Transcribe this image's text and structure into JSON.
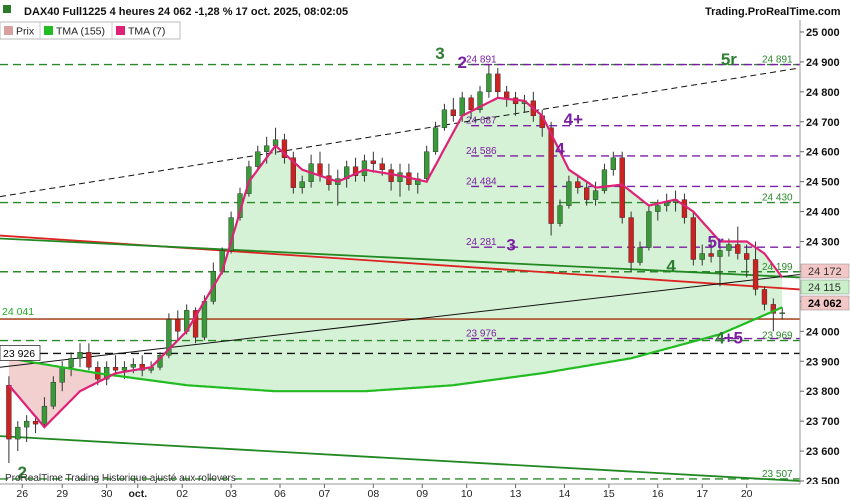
{
  "header": {
    "title": "DAX40 Full1225 4 heures 24 062 -1,28 % 17 oct. 2025, 08:02:05",
    "site": "Trading.ProRealTime.com"
  },
  "legend": [
    {
      "label": "Prix",
      "color": "#d9a0a0"
    },
    {
      "label": "TMA (155)",
      "color": "#22bb22"
    },
    {
      "label": "TMA (7)",
      "color": "#dd2277"
    }
  ],
  "footer": "ProRealTime Trading  Historique ajusté aux rollovers",
  "colors": {
    "up": "#3a9a3a",
    "down": "#cc2222",
    "wick": "#333333",
    "tma155": "#22bb22",
    "tma7": "#dd2277",
    "fill_green": "#d6f2d6",
    "fill_red": "#f2d0d0",
    "dash_green": "#2a8a2a",
    "dash_purple": "#7b1fa2",
    "trend_red": "#dd2222",
    "trend_green": "#228822",
    "trend_black": "#111111"
  },
  "chart_data": {
    "type": "candlestick",
    "x_tick_labels": [
      "26",
      "29",
      "30",
      "oct.",
      "02",
      "03",
      "06",
      "07",
      "08",
      "09",
      "10",
      "13",
      "14",
      "15",
      "16",
      "17",
      "20"
    ],
    "y_ticks": [
      23500,
      23600,
      23700,
      23800,
      23900,
      24000,
      24100,
      24200,
      24300,
      24400,
      24500,
      24600,
      24700,
      24800,
      24900,
      25000
    ],
    "y_tick_labels": [
      "23 500",
      "23 600",
      "23 700",
      "23 800",
      "23 900",
      "24 000",
      "24 100",
      "24 200",
      "24 300",
      "24 400",
      "24 500",
      "24 600",
      "24 700",
      "24 800",
      "24 900",
      "25 000"
    ],
    "ylim": [
      23490,
      25040
    ],
    "grid": false,
    "candles": [
      {
        "o": 23820,
        "h": 23850,
        "l": 23560,
        "c": 23640
      },
      {
        "o": 23640,
        "h": 23700,
        "l": 23600,
        "c": 23680
      },
      {
        "o": 23680,
        "h": 23720,
        "l": 23630,
        "c": 23700
      },
      {
        "o": 23700,
        "h": 23710,
        "l": 23660,
        "c": 23690
      },
      {
        "o": 23690,
        "h": 23780,
        "l": 23680,
        "c": 23750
      },
      {
        "o": 23750,
        "h": 23850,
        "l": 23740,
        "c": 23830
      },
      {
        "o": 23830,
        "h": 23900,
        "l": 23800,
        "c": 23880
      },
      {
        "o": 23880,
        "h": 23930,
        "l": 23850,
        "c": 23910
      },
      {
        "o": 23910,
        "h": 23960,
        "l": 23880,
        "c": 23930
      },
      {
        "o": 23930,
        "h": 23960,
        "l": 23870,
        "c": 23880
      },
      {
        "o": 23880,
        "h": 23900,
        "l": 23820,
        "c": 23840
      },
      {
        "o": 23840,
        "h": 23900,
        "l": 23820,
        "c": 23880
      },
      {
        "o": 23880,
        "h": 23920,
        "l": 23850,
        "c": 23870
      },
      {
        "o": 23870,
        "h": 23900,
        "l": 23840,
        "c": 23880
      },
      {
        "o": 23880,
        "h": 23910,
        "l": 23860,
        "c": 23890
      },
      {
        "o": 23890,
        "h": 23920,
        "l": 23850,
        "c": 23870
      },
      {
        "o": 23870,
        "h": 23900,
        "l": 23860,
        "c": 23880
      },
      {
        "o": 23880,
        "h": 23930,
        "l": 23870,
        "c": 23920
      },
      {
        "o": 23920,
        "h": 24060,
        "l": 23910,
        "c": 24040
      },
      {
        "o": 24040,
        "h": 24070,
        "l": 23970,
        "c": 24000
      },
      {
        "o": 24000,
        "h": 24090,
        "l": 23990,
        "c": 24070
      },
      {
        "o": 24070,
        "h": 24080,
        "l": 23960,
        "c": 23980
      },
      {
        "o": 23980,
        "h": 24120,
        "l": 23970,
        "c": 24100
      },
      {
        "o": 24100,
        "h": 24230,
        "l": 24090,
        "c": 24200
      },
      {
        "o": 24200,
        "h": 24280,
        "l": 24190,
        "c": 24270
      },
      {
        "o": 24270,
        "h": 24400,
        "l": 24260,
        "c": 24380
      },
      {
        "o": 24380,
        "h": 24480,
        "l": 24370,
        "c": 24460
      },
      {
        "o": 24460,
        "h": 24570,
        "l": 24450,
        "c": 24550
      },
      {
        "o": 24550,
        "h": 24620,
        "l": 24540,
        "c": 24600
      },
      {
        "o": 24600,
        "h": 24650,
        "l": 24560,
        "c": 24620
      },
      {
        "o": 24620,
        "h": 24680,
        "l": 24590,
        "c": 24640
      },
      {
        "o": 24640,
        "h": 24660,
        "l": 24560,
        "c": 24580
      },
      {
        "o": 24580,
        "h": 24600,
        "l": 24460,
        "c": 24480
      },
      {
        "o": 24480,
        "h": 24520,
        "l": 24460,
        "c": 24500
      },
      {
        "o": 24500,
        "h": 24590,
        "l": 24480,
        "c": 24560
      },
      {
        "o": 24560,
        "h": 24600,
        "l": 24500,
        "c": 24520
      },
      {
        "o": 24520,
        "h": 24560,
        "l": 24470,
        "c": 24490
      },
      {
        "o": 24490,
        "h": 24540,
        "l": 24420,
        "c": 24510
      },
      {
        "o": 24510,
        "h": 24570,
        "l": 24480,
        "c": 24550
      },
      {
        "o": 24550,
        "h": 24580,
        "l": 24500,
        "c": 24520
      },
      {
        "o": 24520,
        "h": 24590,
        "l": 24500,
        "c": 24570
      },
      {
        "o": 24570,
        "h": 24600,
        "l": 24530,
        "c": 24560
      },
      {
        "o": 24560,
        "h": 24580,
        "l": 24520,
        "c": 24540
      },
      {
        "o": 24540,
        "h": 24560,
        "l": 24470,
        "c": 24500
      },
      {
        "o": 24500,
        "h": 24560,
        "l": 24450,
        "c": 24530
      },
      {
        "o": 24530,
        "h": 24560,
        "l": 24470,
        "c": 24490
      },
      {
        "o": 24490,
        "h": 24530,
        "l": 24460,
        "c": 24510
      },
      {
        "o": 24510,
        "h": 24620,
        "l": 24500,
        "c": 24600
      },
      {
        "o": 24600,
        "h": 24700,
        "l": 24590,
        "c": 24680
      },
      {
        "o": 24680,
        "h": 24760,
        "l": 24670,
        "c": 24740
      },
      {
        "o": 24740,
        "h": 24780,
        "l": 24700,
        "c": 24720
      },
      {
        "o": 24720,
        "h": 24800,
        "l": 24700,
        "c": 24780
      },
      {
        "o": 24780,
        "h": 24790,
        "l": 24710,
        "c": 24740
      },
      {
        "o": 24740,
        "h": 24820,
        "l": 24730,
        "c": 24800
      },
      {
        "o": 24800,
        "h": 24890,
        "l": 24780,
        "c": 24860
      },
      {
        "o": 24860,
        "h": 24880,
        "l": 24780,
        "c": 24800
      },
      {
        "o": 24800,
        "h": 24820,
        "l": 24750,
        "c": 24780
      },
      {
        "o": 24780,
        "h": 24800,
        "l": 24720,
        "c": 24760
      },
      {
        "o": 24760,
        "h": 24790,
        "l": 24730,
        "c": 24770
      },
      {
        "o": 24770,
        "h": 24800,
        "l": 24700,
        "c": 24720
      },
      {
        "o": 24720,
        "h": 24740,
        "l": 24650,
        "c": 24680
      },
      {
        "o": 24680,
        "h": 24700,
        "l": 24320,
        "c": 24360
      },
      {
        "o": 24360,
        "h": 24440,
        "l": 24350,
        "c": 24420
      },
      {
        "o": 24420,
        "h": 24520,
        "l": 24410,
        "c": 24500
      },
      {
        "o": 24500,
        "h": 24520,
        "l": 24460,
        "c": 24480
      },
      {
        "o": 24480,
        "h": 24500,
        "l": 24420,
        "c": 24440
      },
      {
        "o": 24440,
        "h": 24500,
        "l": 24420,
        "c": 24470
      },
      {
        "o": 24470,
        "h": 24560,
        "l": 24460,
        "c": 24540
      },
      {
        "o": 24540,
        "h": 24600,
        "l": 24520,
        "c": 24580
      },
      {
        "o": 24580,
        "h": 24600,
        "l": 24360,
        "c": 24380
      },
      {
        "o": 24380,
        "h": 24400,
        "l": 24200,
        "c": 24230
      },
      {
        "o": 24230,
        "h": 24300,
        "l": 24220,
        "c": 24280
      },
      {
        "o": 24280,
        "h": 24420,
        "l": 24270,
        "c": 24400
      },
      {
        "o": 24400,
        "h": 24440,
        "l": 24370,
        "c": 24420
      },
      {
        "o": 24420,
        "h": 24460,
        "l": 24400,
        "c": 24430
      },
      {
        "o": 24430,
        "h": 24470,
        "l": 24400,
        "c": 24440
      },
      {
        "o": 24440,
        "h": 24460,
        "l": 24360,
        "c": 24380
      },
      {
        "o": 24380,
        "h": 24400,
        "l": 24220,
        "c": 24240
      },
      {
        "o": 24240,
        "h": 24290,
        "l": 24220,
        "c": 24260
      },
      {
        "o": 24260,
        "h": 24300,
        "l": 24230,
        "c": 24250
      },
      {
        "o": 24250,
        "h": 24280,
        "l": 24150,
        "c": 24270
      },
      {
        "o": 24270,
        "h": 24310,
        "l": 24250,
        "c": 24290
      },
      {
        "o": 24290,
        "h": 24350,
        "l": 24240,
        "c": 24260
      },
      {
        "o": 24260,
        "h": 24290,
        "l": 24180,
        "c": 24240
      },
      {
        "o": 24240,
        "h": 24300,
        "l": 24120,
        "c": 24140
      },
      {
        "o": 24140,
        "h": 24150,
        "l": 24070,
        "c": 24090
      },
      {
        "o": 24090,
        "h": 24110,
        "l": 24000,
        "c": 24060
      },
      {
        "o": 24060,
        "h": 24080,
        "l": 24040,
        "c": 24062
      }
    ],
    "tma155": [
      [
        0,
        23910
      ],
      [
        10,
        23860
      ],
      [
        20,
        23820
      ],
      [
        30,
        23800
      ],
      [
        40,
        23800
      ],
      [
        50,
        23820
      ],
      [
        60,
        23860
      ],
      [
        70,
        23910
      ],
      [
        80,
        23990
      ],
      [
        87,
        24080
      ]
    ],
    "tma7": [
      [
        0,
        23820
      ],
      [
        4,
        23680
      ],
      [
        8,
        23800
      ],
      [
        12,
        23860
      ],
      [
        16,
        23880
      ],
      [
        20,
        24000
      ],
      [
        24,
        24200
      ],
      [
        27,
        24500
      ],
      [
        30,
        24620
      ],
      [
        33,
        24540
      ],
      [
        37,
        24500
      ],
      [
        40,
        24540
      ],
      [
        44,
        24520
      ],
      [
        47,
        24500
      ],
      [
        51,
        24720
      ],
      [
        55,
        24780
      ],
      [
        58,
        24770
      ],
      [
        60,
        24720
      ],
      [
        63,
        24540
      ],
      [
        66,
        24480
      ],
      [
        69,
        24490
      ],
      [
        72,
        24420
      ],
      [
        75,
        24440
      ],
      [
        77,
        24400
      ],
      [
        80,
        24300
      ],
      [
        83,
        24300
      ],
      [
        85,
        24260
      ],
      [
        87,
        24180
      ]
    ],
    "horizontal_levels": [
      {
        "value": 24891,
        "label": "24 891",
        "style": "green-dash"
      },
      {
        "value": 24891,
        "label": "24 891",
        "style": "purple-dash"
      },
      {
        "value": 24687,
        "label": "24 687",
        "style": "purple-dash"
      },
      {
        "value": 24586,
        "label": "24 586",
        "style": "purple-dash"
      },
      {
        "value": 24484,
        "label": "24 484",
        "style": "purple-dash"
      },
      {
        "value": 24430,
        "label": "24 430",
        "style": "green-dash"
      },
      {
        "value": 24281,
        "label": "24 281",
        "style": "purple-dash"
      },
      {
        "value": 24199,
        "label": "24 199",
        "style": "green-dash"
      },
      {
        "value": 23976,
        "label": "23 976",
        "style": "purple-dash"
      },
      {
        "value": 23969,
        "label": "23 969",
        "style": "green-dash"
      },
      {
        "value": 23926,
        "label": "23 926",
        "style": "black-dash"
      },
      {
        "value": 23507,
        "label": "23 507",
        "style": "green-dash"
      }
    ],
    "solid_levels": [
      {
        "value": 24041,
        "label": "24 041",
        "color": "#22aa22"
      }
    ],
    "trendlines": [
      {
        "x1": -1,
        "y1": 24320,
        "x2": 89,
        "y2": 24140,
        "color": "#dd2222",
        "dash": false
      },
      {
        "x1": -1,
        "y1": 24310,
        "x2": 89,
        "y2": 24180,
        "color": "#228822",
        "dash": false
      },
      {
        "x1": -1,
        "y1": 23650,
        "x2": 89,
        "y2": 23500,
        "color": "#228822",
        "dash": false
      },
      {
        "x1": -1,
        "y1": 23880,
        "x2": 89,
        "y2": 24190,
        "color": "#111111",
        "dash": false
      },
      {
        "x1": -1,
        "y1": 24450,
        "x2": 89,
        "y2": 24880,
        "color": "#111111",
        "dash": true
      }
    ],
    "price_tags": [
      {
        "value": 24172,
        "label": "24 172",
        "bg": "#f4c7c7",
        "fg": "#333333"
      },
      {
        "value": 24115,
        "label": "24 115",
        "bg": "#c9efc9",
        "fg": "#333333"
      },
      {
        "value": 24062,
        "label": "24 062",
        "bg": "#f4c7c7",
        "fg": "#000000"
      }
    ],
    "left_tags": [
      {
        "value": 24041,
        "label": "24 041",
        "color": "#22aa22",
        "boxed": false
      },
      {
        "value": 23926,
        "label": "23 926",
        "color": "#000000",
        "boxed": true
      }
    ],
    "wave_labels": [
      {
        "text": "3",
        "x": 48.5,
        "y": 24910,
        "color": "#2e7d32"
      },
      {
        "text": "2",
        "x": 51,
        "y": 24880,
        "color": "#7b1fa2"
      },
      {
        "text": "4+",
        "x": 63.5,
        "y": 24690,
        "color": "#7b1fa2"
      },
      {
        "text": "4",
        "x": 62,
        "y": 24590,
        "color": "#7b1fa2"
      },
      {
        "text": "3",
        "x": 56.5,
        "y": 24270,
        "color": "#7b1fa2"
      },
      {
        "text": "5r",
        "x": 81,
        "y": 24890,
        "color": "#2e7d32"
      },
      {
        "text": "5r",
        "x": 79.5,
        "y": 24280,
        "color": "#7b1fa2"
      },
      {
        "text": "4",
        "x": 74.5,
        "y": 24200,
        "color": "#2e7d32"
      },
      {
        "text": "4",
        "x": 80,
        "y": 23960,
        "color": "#2e7d32"
      },
      {
        "text": "+5",
        "x": 81.5,
        "y": 23960,
        "color": "#7b1fa2"
      },
      {
        "text": "2",
        "x": 1.5,
        "y": 23510,
        "color": "#2e7d32"
      }
    ]
  }
}
